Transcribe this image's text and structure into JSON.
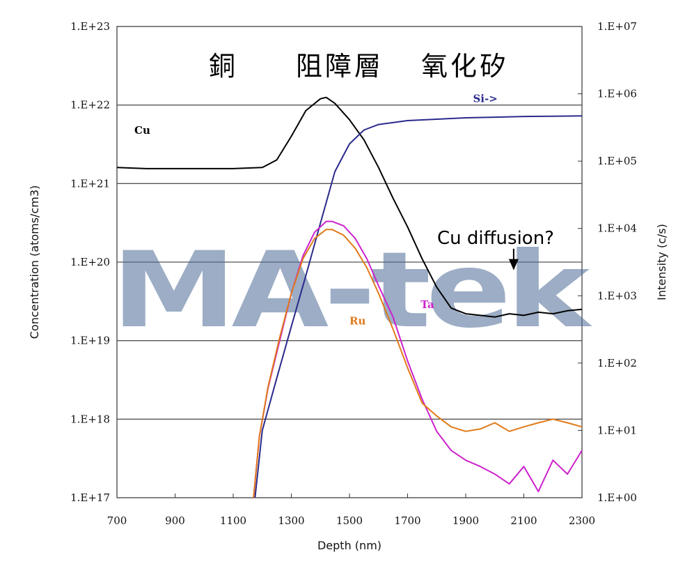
{
  "watermark": "MA-tek",
  "regions": [
    "銅",
    "阻障層",
    "氧化矽"
  ],
  "annotation": {
    "text": "Cu diffusion?",
    "x": 2065,
    "y_from": 5000.0,
    "y_to": 2400.0
  },
  "chart_data": {
    "type": "line",
    "title": "",
    "xlabel": "Depth (nm)",
    "ylabel_left": "Concentration (atoms/cm3)",
    "ylabel_right": "Intensity (c/s)",
    "xlim": [
      700,
      2300
    ],
    "x_ticks": [
      "700",
      "900",
      "1100",
      "1300",
      "1500",
      "1700",
      "1900",
      "2100",
      "2300"
    ],
    "ylim_left": [
      1e+17,
      1e+23
    ],
    "y_scale": "log",
    "y_ticks_left": [
      "1.E+17",
      "1.E+18",
      "1.E+19",
      "1.E+20",
      "1.E+21",
      "1.E+22",
      "1.E+23"
    ],
    "ylim_right": [
      1,
      10000000.0
    ],
    "y_ticks_right": [
      "1.E+00",
      "1.E+01",
      "1.E+02",
      "1.E+03",
      "1.E+04",
      "1.E+05",
      "1.E+06",
      "1.E+07"
    ],
    "grid": "horizontal",
    "series": [
      {
        "name": "Cu",
        "axis": "left",
        "color": "#000000",
        "x": [
          700,
          800,
          900,
          1000,
          1100,
          1200,
          1250,
          1300,
          1350,
          1400,
          1420,
          1450,
          1500,
          1550,
          1600,
          1650,
          1700,
          1750,
          1800,
          1850,
          1900,
          1950,
          2000,
          2050,
          2100,
          2150,
          2200,
          2250,
          2300
        ],
        "y": [
          1.6e+21,
          1.55e+21,
          1.55e+21,
          1.55e+21,
          1.55e+21,
          1.6e+21,
          2e+21,
          4e+21,
          8.5e+21,
          1.2e+22,
          1.25e+22,
          1.05e+22,
          6.5e+21,
          3.6e+21,
          1.6e+21,
          6.5e+20,
          2.8e+20,
          1.1e+20,
          4.8e+19,
          2.6e+19,
          2.2e+19,
          2.1e+19,
          2e+19,
          2.2e+19,
          2.1e+19,
          2.3e+19,
          2.2e+19,
          2.4e+19,
          2.5e+19
        ],
        "label_pos": {
          "x": 760,
          "y": 4.3e+21
        }
      },
      {
        "name": "Si->",
        "axis": "right",
        "color": "#2a2a8c",
        "x": [
          1175,
          1200,
          1250,
          1300,
          1350,
          1400,
          1450,
          1500,
          1550,
          1600,
          1700,
          1800,
          1900,
          2000,
          2100,
          2200,
          2300
        ],
        "y": [
          1,
          10,
          60,
          350,
          2000,
          12000,
          70000,
          180000,
          290000,
          350000,
          400000,
          420000,
          440000,
          450000,
          460000,
          465000,
          470000
        ],
        "label_pos": {
          "x": 1925,
          "y": 750000.0
        }
      },
      {
        "name": "Ta",
        "axis": "left",
        "color": "#cc22cc",
        "x": [
          1170,
          1190,
          1220,
          1260,
          1300,
          1340,
          1380,
          1420,
          1440,
          1480,
          1520,
          1560,
          1600,
          1650,
          1700,
          1750,
          1800,
          1850,
          1900,
          1950,
          2000,
          2050,
          2100,
          2150,
          2200,
          2250,
          2300
        ],
        "y": [
          1e+17,
          6e+17,
          2.5e+18,
          1e+19,
          4e+19,
          1.2e+20,
          2.4e+20,
          3.3e+20,
          3.3e+20,
          2.9e+20,
          2e+20,
          1.1e+20,
          5e+19,
          2e+19,
          5.5e+18,
          1.8e+18,
          7e+17,
          4e+17,
          3e+17,
          2.5e+17,
          2e+17,
          1.5e+17,
          2.5e+17,
          1.2e+17,
          3e+17,
          2e+17,
          4e+17
        ],
        "label_pos": {
          "x": 1745,
          "y": 2.6e+19
        }
      },
      {
        "name": "Ru",
        "axis": "left",
        "color": "#e07a1a",
        "x": [
          1170,
          1190,
          1220,
          1260,
          1300,
          1340,
          1380,
          1420,
          1440,
          1480,
          1520,
          1560,
          1600,
          1650,
          1700,
          1750,
          1800,
          1850,
          1900,
          1950,
          2000,
          2050,
          2100,
          2150,
          2200,
          2250,
          2300
        ],
        "y": [
          1e+17,
          6e+17,
          2.6e+18,
          1.1e+19,
          4e+19,
          1.1e+20,
          2e+20,
          2.6e+20,
          2.6e+20,
          2.2e+20,
          1.5e+20,
          8.5e+19,
          4e+19,
          1.4e+19,
          4.5e+18,
          1.6e+18,
          1.1e+18,
          8e+17,
          7e+17,
          7.5e+17,
          9e+17,
          7e+17,
          8e+17,
          9e+17,
          1e+18,
          9e+17,
          8e+17
        ],
        "label_pos": {
          "x": 1500,
          "y": 1.6e+19
        }
      }
    ]
  }
}
